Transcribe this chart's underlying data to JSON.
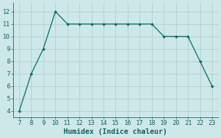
{
  "x": [
    7,
    8,
    9,
    10,
    11,
    12,
    13,
    14,
    15,
    16,
    17,
    18,
    19,
    20,
    21,
    22,
    23
  ],
  "y": [
    4,
    7,
    9,
    12,
    11,
    11,
    11,
    11,
    11,
    11,
    11,
    11,
    10,
    10,
    10,
    8,
    6
  ],
  "line_color": "#1a6b6b",
  "marker": "D",
  "marker_size": 2.0,
  "line_width": 1.0,
  "xlabel": "Humidex (Indice chaleur)",
  "xlim": [
    6.5,
    23.5
  ],
  "ylim": [
    3.5,
    12.7
  ],
  "yticks": [
    4,
    5,
    6,
    7,
    8,
    9,
    10,
    11,
    12
  ],
  "xticks": [
    7,
    8,
    9,
    10,
    11,
    12,
    13,
    14,
    15,
    16,
    17,
    18,
    19,
    20,
    21,
    22,
    23
  ],
  "bg_color": "#cde8e8",
  "grid_color": "#b0cccc",
  "font_color": "#1a5c5c",
  "xlabel_fontsize": 7.5,
  "tick_fontsize": 6.5
}
